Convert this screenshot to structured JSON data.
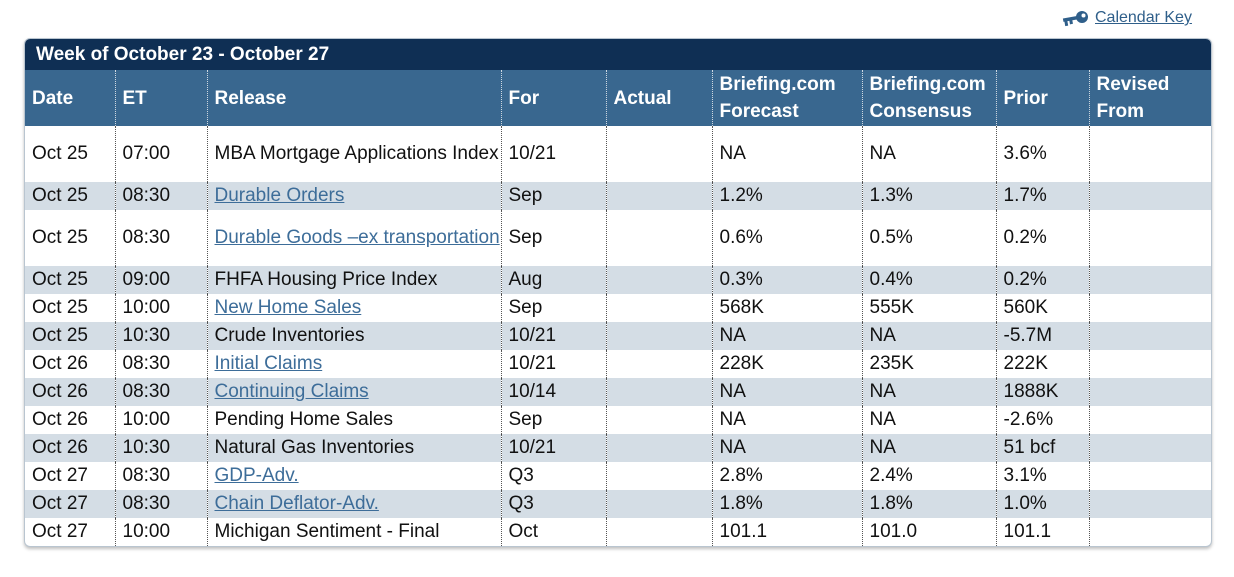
{
  "calendar_key": {
    "label": "Calendar Key",
    "icon": "key-icon"
  },
  "week": {
    "title": "Week of October 23 - October 27"
  },
  "columns": [
    "Date",
    "ET",
    "Release",
    "For",
    "Actual",
    "Briefing.com Forecast",
    "Briefing.com Consensus",
    "Prior",
    "Revised From"
  ],
  "rows": [
    {
      "date": "Oct 25",
      "et": "07:00",
      "release": "MBA Mortgage Applications Index",
      "link": false,
      "for": "10/21",
      "actual": "",
      "forecast": "NA",
      "consensus": "NA",
      "prior": "3.6%",
      "revised": ""
    },
    {
      "date": "Oct 25",
      "et": "08:30",
      "release": "Durable Orders",
      "link": true,
      "for": "Sep",
      "actual": "",
      "forecast": "1.2%",
      "consensus": "1.3%",
      "prior": "1.7%",
      "revised": ""
    },
    {
      "date": "Oct 25",
      "et": "08:30",
      "release": "Durable Goods –ex transportation",
      "link": true,
      "for": "Sep",
      "actual": "",
      "forecast": "0.6%",
      "consensus": "0.5%",
      "prior": "0.2%",
      "revised": ""
    },
    {
      "date": "Oct 25",
      "et": "09:00",
      "release": "FHFA Housing Price Index",
      "link": false,
      "for": "Aug",
      "actual": "",
      "forecast": "0.3%",
      "consensus": "0.4%",
      "prior": "0.2%",
      "revised": ""
    },
    {
      "date": "Oct 25",
      "et": "10:00",
      "release": "New Home Sales",
      "link": true,
      "for": "Sep",
      "actual": "",
      "forecast": "568K",
      "consensus": "555K",
      "prior": "560K",
      "revised": ""
    },
    {
      "date": "Oct 25",
      "et": "10:30",
      "release": "Crude Inventories",
      "link": false,
      "for": "10/21",
      "actual": "",
      "forecast": "NA",
      "consensus": "NA",
      "prior": "-5.7M",
      "revised": ""
    },
    {
      "date": "Oct 26",
      "et": "08:30",
      "release": "Initial Claims",
      "link": true,
      "for": "10/21",
      "actual": "",
      "forecast": "228K",
      "consensus": "235K",
      "prior": "222K",
      "revised": ""
    },
    {
      "date": "Oct 26",
      "et": "08:30",
      "release": "Continuing Claims",
      "link": true,
      "for": "10/14",
      "actual": "",
      "forecast": "NA",
      "consensus": "NA",
      "prior": "1888K",
      "revised": ""
    },
    {
      "date": "Oct 26",
      "et": "10:00",
      "release": "Pending Home Sales",
      "link": false,
      "for": "Sep",
      "actual": "",
      "forecast": "NA",
      "consensus": "NA",
      "prior": "-2.6%",
      "revised": ""
    },
    {
      "date": "Oct 26",
      "et": "10:30",
      "release": "Natural Gas Inventories",
      "link": false,
      "for": "10/21",
      "actual": "",
      "forecast": "NA",
      "consensus": "NA",
      "prior": "51 bcf",
      "revised": ""
    },
    {
      "date": "Oct 27",
      "et": "08:30",
      "release": "GDP-Adv.",
      "link": true,
      "for": "Q3",
      "actual": "",
      "forecast": "2.8%",
      "consensus": "2.4%",
      "prior": "3.1%",
      "revised": ""
    },
    {
      "date": "Oct 27",
      "et": "08:30",
      "release": "Chain Deflator-Adv.",
      "link": true,
      "for": "Q3",
      "actual": "",
      "forecast": "1.8%",
      "consensus": "1.8%",
      "prior": "1.0%",
      "revised": ""
    },
    {
      "date": "Oct 27",
      "et": "10:00",
      "release": "Michigan Sentiment - Final",
      "link": false,
      "for": "Oct",
      "actual": "",
      "forecast": "101.1",
      "consensus": "101.0",
      "prior": "101.1",
      "revised": ""
    }
  ]
}
